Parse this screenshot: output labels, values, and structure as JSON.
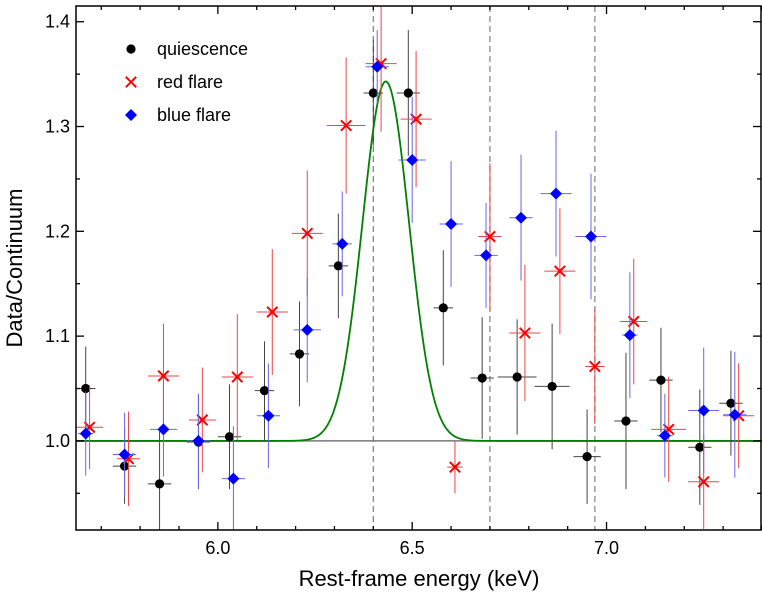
{
  "chart_data": {
    "type": "scatter",
    "xlabel": "Rest-frame energy (keV)",
    "ylabel": "Data/Continuum",
    "xlim": [
      5.635,
      7.4
    ],
    "ylim": [
      0.915,
      1.415
    ],
    "xticks": [
      6.0,
      6.5,
      7.0
    ],
    "xtick_labels": [
      "6.0",
      "6.5",
      "7.0"
    ],
    "yticks": [
      1.0,
      1.1,
      1.2,
      1.3,
      1.4
    ],
    "ytick_labels": [
      "1.0",
      "1.1",
      "1.2",
      "1.3",
      "1.4"
    ],
    "legend_position": "top-left",
    "reference_lines": {
      "horizontal_y": 1.0,
      "vertical_x": [
        6.4,
        6.7,
        6.97
      ]
    },
    "model_curve": {
      "name": "Gaussian line model",
      "color": "#008000",
      "center": 6.432,
      "amplitude": 0.343,
      "sigma": 0.06,
      "baseline": 1.0
    },
    "series": [
      {
        "name": "quiescence",
        "marker": "circle",
        "color": "#000000",
        "points": [
          {
            "x": 5.66,
            "y": 1.05,
            "xerr": 0.025,
            "yerr": 0.04
          },
          {
            "x": 5.76,
            "y": 0.976,
            "xerr": 0.03,
            "yerr": 0.036
          },
          {
            "x": 5.85,
            "y": 0.959,
            "xerr": 0.03,
            "yerr": 0.05
          },
          {
            "x": 5.95,
            "y": 0.999,
            "xerr": 0.03,
            "yerr": 0.045
          },
          {
            "x": 6.03,
            "y": 1.004,
            "xerr": 0.03,
            "yerr": 0.05
          },
          {
            "x": 6.12,
            "y": 1.048,
            "xerr": 0.025,
            "yerr": 0.047
          },
          {
            "x": 6.21,
            "y": 1.083,
            "xerr": 0.025,
            "yerr": 0.05
          },
          {
            "x": 6.31,
            "y": 1.167,
            "xerr": 0.025,
            "yerr": 0.05
          },
          {
            "x": 6.4,
            "y": 1.332,
            "xerr": 0.025,
            "yerr": 0.05
          },
          {
            "x": 6.49,
            "y": 1.332,
            "xerr": 0.03,
            "yerr": 0.06
          },
          {
            "x": 6.58,
            "y": 1.127,
            "xerr": 0.025,
            "yerr": 0.055
          },
          {
            "x": 6.68,
            "y": 1.06,
            "xerr": 0.03,
            "yerr": 0.058
          },
          {
            "x": 6.77,
            "y": 1.061,
            "xerr": 0.05,
            "yerr": 0.055
          },
          {
            "x": 6.86,
            "y": 1.052,
            "xerr": 0.045,
            "yerr": 0.06
          },
          {
            "x": 6.95,
            "y": 0.985,
            "xerr": 0.035,
            "yerr": 0.045
          },
          {
            "x": 7.05,
            "y": 1.019,
            "xerr": 0.03,
            "yerr": 0.065
          },
          {
            "x": 7.14,
            "y": 1.058,
            "xerr": 0.03,
            "yerr": 0.05
          },
          {
            "x": 7.24,
            "y": 0.994,
            "xerr": 0.03,
            "yerr": 0.055
          },
          {
            "x": 7.32,
            "y": 1.036,
            "xerr": 0.03,
            "yerr": 0.05
          }
        ]
      },
      {
        "name": "red flare",
        "marker": "cross",
        "color": "#ff0000",
        "points": [
          {
            "x": 5.67,
            "y": 1.013,
            "xerr": 0.035,
            "yerr": 0.04
          },
          {
            "x": 5.77,
            "y": 0.983,
            "xerr": 0.03,
            "yerr": 0.045
          },
          {
            "x": 5.86,
            "y": 1.062,
            "xerr": 0.04,
            "yerr": 0.05
          },
          {
            "x": 5.96,
            "y": 1.02,
            "xerr": 0.035,
            "yerr": 0.05
          },
          {
            "x": 6.05,
            "y": 1.061,
            "xerr": 0.04,
            "yerr": 0.06
          },
          {
            "x": 6.14,
            "y": 1.123,
            "xerr": 0.04,
            "yerr": 0.06
          },
          {
            "x": 6.23,
            "y": 1.198,
            "xerr": 0.04,
            "yerr": 0.06
          },
          {
            "x": 6.33,
            "y": 1.301,
            "xerr": 0.05,
            "yerr": 0.065
          },
          {
            "x": 6.42,
            "y": 1.36,
            "xerr": 0.04,
            "yerr": 0.065
          },
          {
            "x": 6.51,
            "y": 1.307,
            "xerr": 0.04,
            "yerr": 0.065
          },
          {
            "x": 6.61,
            "y": 0.975,
            "xerr": 0.02,
            "yerr": 0.025
          },
          {
            "x": 6.7,
            "y": 1.195,
            "xerr": 0.03,
            "yerr": 0.07
          },
          {
            "x": 6.79,
            "y": 1.103,
            "xerr": 0.04,
            "yerr": 0.065
          },
          {
            "x": 6.88,
            "y": 1.162,
            "xerr": 0.04,
            "yerr": 0.06
          },
          {
            "x": 6.97,
            "y": 1.071,
            "xerr": 0.025,
            "yerr": 0.055
          },
          {
            "x": 7.07,
            "y": 1.114,
            "xerr": 0.035,
            "yerr": 0.06
          },
          {
            "x": 7.16,
            "y": 1.011,
            "xerr": 0.045,
            "yerr": 0.05
          },
          {
            "x": 7.25,
            "y": 0.961,
            "xerr": 0.04,
            "yerr": 0.045
          },
          {
            "x": 7.34,
            "y": 1.024,
            "xerr": 0.04,
            "yerr": 0.05
          }
        ]
      },
      {
        "name": "blue flare",
        "marker": "diamond",
        "color": "#0000ff",
        "points": [
          {
            "x": 5.66,
            "y": 1.007,
            "xerr": 0.02,
            "yerr": 0.04
          },
          {
            "x": 5.76,
            "y": 0.987,
            "xerr": 0.03,
            "yerr": 0.04
          },
          {
            "x": 5.86,
            "y": 1.011,
            "xerr": 0.035,
            "yerr": 0.045
          },
          {
            "x": 5.95,
            "y": 1.0,
            "xerr": 0.03,
            "yerr": 0.045
          },
          {
            "x": 6.04,
            "y": 0.964,
            "xerr": 0.03,
            "yerr": 0.05
          },
          {
            "x": 6.13,
            "y": 1.024,
            "xerr": 0.03,
            "yerr": 0.05
          },
          {
            "x": 6.23,
            "y": 1.106,
            "xerr": 0.035,
            "yerr": 0.05
          },
          {
            "x": 6.32,
            "y": 1.188,
            "xerr": 0.025,
            "yerr": 0.05
          },
          {
            "x": 6.41,
            "y": 1.357,
            "xerr": 0.03,
            "yerr": 0.035
          },
          {
            "x": 6.5,
            "y": 1.268,
            "xerr": 0.035,
            "yerr": 0.06
          },
          {
            "x": 6.6,
            "y": 1.207,
            "xerr": 0.03,
            "yerr": 0.06
          },
          {
            "x": 6.69,
            "y": 1.177,
            "xerr": 0.03,
            "yerr": 0.05
          },
          {
            "x": 6.78,
            "y": 1.213,
            "xerr": 0.03,
            "yerr": 0.06
          },
          {
            "x": 6.87,
            "y": 1.236,
            "xerr": 0.04,
            "yerr": 0.06
          },
          {
            "x": 6.96,
            "y": 1.195,
            "xerr": 0.04,
            "yerr": 0.06
          },
          {
            "x": 7.06,
            "y": 1.101,
            "xerr": 0.02,
            "yerr": 0.06
          },
          {
            "x": 7.15,
            "y": 1.005,
            "xerr": 0.02,
            "yerr": 0.04
          },
          {
            "x": 7.25,
            "y": 1.029,
            "xerr": 0.04,
            "yerr": 0.06
          },
          {
            "x": 7.33,
            "y": 1.025,
            "xerr": 0.03,
            "yerr": 0.06
          }
        ]
      }
    ]
  }
}
